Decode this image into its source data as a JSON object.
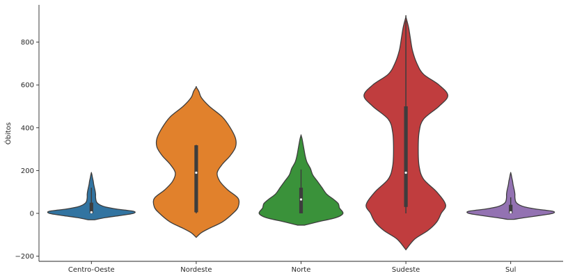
{
  "chart_data": {
    "type": "violin",
    "ylabel": "Óbitos",
    "xlabel": "",
    "ylim": [
      -222,
      970
    ],
    "yticks": [
      -200,
      0,
      200,
      400,
      600,
      800
    ],
    "grid": false,
    "categories": [
      "Centro-Oeste",
      "Nordeste",
      "Norte",
      "Sudeste",
      "Sul"
    ],
    "violins": [
      {
        "category": "Centro-Oeste",
        "color": "#3274a1",
        "min": -30,
        "max": 190,
        "q1": 0,
        "median": 5,
        "q3": 50,
        "whisker_low": 0,
        "whisker_high": 120,
        "profile": [
          [
            -30,
            0.07
          ],
          [
            -20,
            0.3
          ],
          [
            -10,
            0.62
          ],
          [
            0,
            0.9
          ],
          [
            10,
            0.9
          ],
          [
            20,
            0.55
          ],
          [
            30,
            0.3
          ],
          [
            40,
            0.18
          ],
          [
            50,
            0.12
          ],
          [
            60,
            0.1
          ],
          [
            75,
            0.09
          ],
          [
            90,
            0.09
          ],
          [
            105,
            0.08
          ],
          [
            120,
            0.065
          ],
          [
            135,
            0.05
          ],
          [
            150,
            0.04
          ],
          [
            165,
            0.025
          ],
          [
            180,
            0.012
          ],
          [
            190,
            0
          ]
        ]
      },
      {
        "category": "Nordeste",
        "color": "#e1812c",
        "min": -112,
        "max": 590,
        "q1": 5,
        "median": 190,
        "q3": 318,
        "whisker_low": 0,
        "whisker_high": 320,
        "profile": [
          [
            -112,
            0
          ],
          [
            -90,
            0.02
          ],
          [
            -70,
            0.05
          ],
          [
            -40,
            0.1
          ],
          [
            0,
            0.14
          ],
          [
            30,
            0.16
          ],
          [
            70,
            0.16
          ],
          [
            110,
            0.12
          ],
          [
            150,
            0.09
          ],
          [
            190,
            0.08
          ],
          [
            230,
            0.1
          ],
          [
            270,
            0.13
          ],
          [
            310,
            0.15
          ],
          [
            350,
            0.15
          ],
          [
            400,
            0.13
          ],
          [
            450,
            0.1
          ],
          [
            500,
            0.05
          ],
          [
            540,
            0.02
          ],
          [
            570,
            0.01
          ],
          [
            590,
            0
          ]
        ]
      },
      {
        "category": "Norte",
        "color": "#3a923a",
        "min": -55,
        "max": 365,
        "q1": 0,
        "median": 65,
        "q3": 120,
        "whisker_low": 0,
        "whisker_high": 205,
        "profile": [
          [
            -55,
            0.03
          ],
          [
            -40,
            0.14
          ],
          [
            -20,
            0.3
          ],
          [
            0,
            0.36
          ],
          [
            25,
            0.33
          ],
          [
            45,
            0.32
          ],
          [
            65,
            0.28
          ],
          [
            90,
            0.22
          ],
          [
            120,
            0.18
          ],
          [
            150,
            0.14
          ],
          [
            180,
            0.1
          ],
          [
            210,
            0.08
          ],
          [
            240,
            0.05
          ],
          [
            270,
            0.035
          ],
          [
            300,
            0.025
          ],
          [
            330,
            0.015
          ],
          [
            350,
            0.008
          ],
          [
            365,
            0
          ]
        ]
      },
      {
        "category": "Sudeste",
        "color": "#c03d3e",
        "min": -170,
        "max": 918,
        "q1": 30,
        "median": 190,
        "q3": 500,
        "whisker_low": 0,
        "whisker_high": 900,
        "profile": [
          [
            -170,
            0
          ],
          [
            -120,
            0.02
          ],
          [
            -80,
            0.05
          ],
          [
            -40,
            0.07
          ],
          [
            0,
            0.08
          ],
          [
            40,
            0.09
          ],
          [
            100,
            0.07
          ],
          [
            160,
            0.04
          ],
          [
            220,
            0.03
          ],
          [
            300,
            0.028
          ],
          [
            380,
            0.03
          ],
          [
            440,
            0.04
          ],
          [
            500,
            0.075
          ],
          [
            550,
            0.095
          ],
          [
            600,
            0.075
          ],
          [
            650,
            0.04
          ],
          [
            700,
            0.025
          ],
          [
            760,
            0.015
          ],
          [
            820,
            0.01
          ],
          [
            870,
            0.006
          ],
          [
            918,
            0
          ]
        ]
      },
      {
        "category": "Sul",
        "color": "#9372b2",
        "min": -28,
        "max": 190,
        "q1": 0,
        "median": 5,
        "q3": 40,
        "whisker_low": 0,
        "whisker_high": 75,
        "profile": [
          [
            -28,
            0.07
          ],
          [
            -20,
            0.3
          ],
          [
            -10,
            0.62
          ],
          [
            0,
            0.9
          ],
          [
            10,
            0.9
          ],
          [
            20,
            0.55
          ],
          [
            30,
            0.3
          ],
          [
            40,
            0.18
          ],
          [
            50,
            0.12
          ],
          [
            60,
            0.1
          ],
          [
            75,
            0.09
          ],
          [
            90,
            0.09
          ],
          [
            105,
            0.08
          ],
          [
            120,
            0.065
          ],
          [
            135,
            0.05
          ],
          [
            150,
            0.04
          ],
          [
            165,
            0.025
          ],
          [
            180,
            0.012
          ],
          [
            190,
            0
          ]
        ]
      }
    ]
  }
}
